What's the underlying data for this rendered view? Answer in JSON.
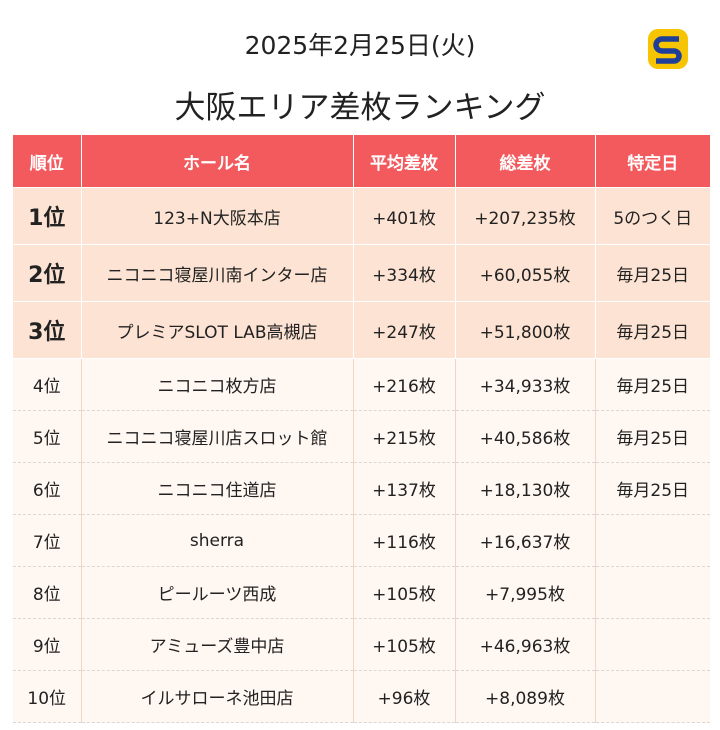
{
  "date": "2025年2月25日(火)",
  "title": "大阪エリア差枚ランキング",
  "colors": {
    "header_bg": "#f25a5e",
    "top_row_bg": "#fde3d3",
    "row_bg": "#fff7f2",
    "logo_yellow": "#f6c400",
    "logo_blue": "#1d3f9a"
  },
  "logo_icon": "s-logo-icon",
  "table": {
    "headers": {
      "rank": "順位",
      "hall": "ホール名",
      "avg": "平均差枚",
      "total": "総差枚",
      "special": "特定日"
    },
    "rows": [
      {
        "rank": "1位",
        "hall": "123+N大阪本店",
        "avg": "+401枚",
        "total": "+207,235枚",
        "special": "5のつく日"
      },
      {
        "rank": "2位",
        "hall": "ニコニコ寝屋川南インター店",
        "avg": "+334枚",
        "total": "+60,055枚",
        "special": "毎月25日"
      },
      {
        "rank": "3位",
        "hall": "プレミアSLOT LAB高槻店",
        "avg": "+247枚",
        "total": "+51,800枚",
        "special": "毎月25日"
      },
      {
        "rank": "4位",
        "hall": "ニコニコ枚方店",
        "avg": "+216枚",
        "total": "+34,933枚",
        "special": "毎月25日"
      },
      {
        "rank": "5位",
        "hall": "ニコニコ寝屋川店スロット館",
        "avg": "+215枚",
        "total": "+40,586枚",
        "special": "毎月25日"
      },
      {
        "rank": "6位",
        "hall": "ニコニコ住道店",
        "avg": "+137枚",
        "total": "+18,130枚",
        "special": "毎月25日"
      },
      {
        "rank": "7位",
        "hall": "sherra",
        "avg": "+116枚",
        "total": "+16,637枚",
        "special": ""
      },
      {
        "rank": "8位",
        "hall": "ピールーツ西成",
        "avg": "+105枚",
        "total": "+7,995枚",
        "special": ""
      },
      {
        "rank": "9位",
        "hall": "アミューズ豊中店",
        "avg": "+105枚",
        "total": "+46,963枚",
        "special": ""
      },
      {
        "rank": "10位",
        "hall": "イルサローネ池田店",
        "avg": "+96枚",
        "total": "+8,089枚",
        "special": ""
      }
    ]
  }
}
